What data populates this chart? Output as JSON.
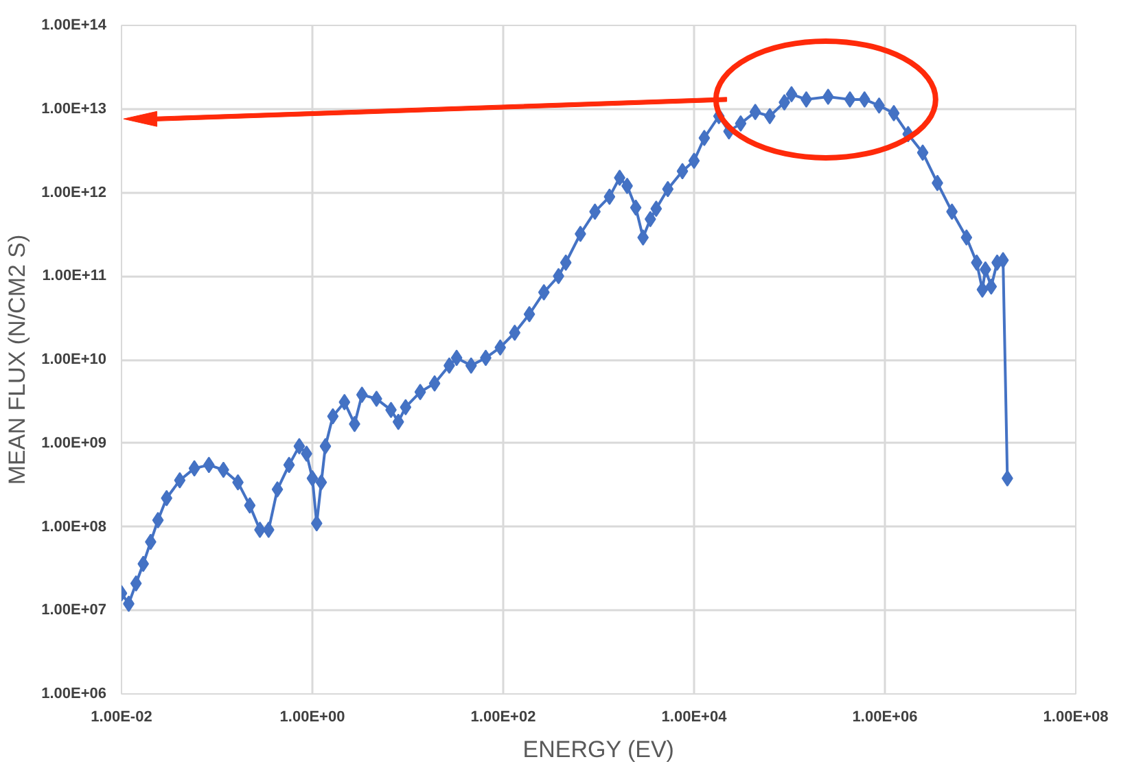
{
  "chart_data": {
    "type": "line",
    "xlabel": "ENERGY (EV)",
    "ylabel": "MEAN FLUX (N/CM2 S)",
    "log": "xy",
    "grid": true,
    "marker": "diamond",
    "line_style": "solid",
    "xlim": [
      0.01,
      100000000
    ],
    "ylim": [
      1000000,
      100000000000000
    ],
    "xticks": [
      {
        "value": 0.01,
        "label": "1.00E-02"
      },
      {
        "value": 1,
        "label": "1.00E+00"
      },
      {
        "value": 100,
        "label": "1.00E+02"
      },
      {
        "value": 10000,
        "label": "1.00E+04"
      },
      {
        "value": 1000000,
        "label": "1.00E+06"
      },
      {
        "value": 100000000,
        "label": "1.00E+08"
      }
    ],
    "yticks": [
      {
        "value": 1000000,
        "label": "1.00E+06"
      },
      {
        "value": 10000000,
        "label": "1.00E+07"
      },
      {
        "value": 100000000,
        "label": "1.00E+08"
      },
      {
        "value": 1000000000,
        "label": "1.00E+09"
      },
      {
        "value": 10000000000,
        "label": "1.00E+10"
      },
      {
        "value": 100000000000,
        "label": "1.00E+11"
      },
      {
        "value": 1000000000000,
        "label": "1.00E+12"
      },
      {
        "value": 10000000000000,
        "label": "1.00E+13"
      },
      {
        "value": 100000000000000,
        "label": "1.00E+14"
      }
    ],
    "series": [
      {
        "color": "#4472c4",
        "x": [
          0.01,
          0.0119,
          0.0142,
          0.0169,
          0.0202,
          0.0241,
          0.0297,
          0.0408,
          0.058,
          0.0824,
          0.117,
          0.166,
          0.221,
          0.282,
          0.348,
          0.43,
          0.57,
          0.729,
          0.869,
          1.0,
          1.11,
          1.24,
          1.37,
          1.64,
          2.17,
          2.77,
          3.31,
          4.7,
          6.67,
          7.96,
          9.49,
          13.5,
          19.1,
          27.2,
          32.5,
          46.1,
          65.6,
          93.1,
          132,
          188,
          267,
          380,
          453,
          644,
          915,
          1300,
          1660,
          1990,
          2450,
          2920,
          3480,
          4010,
          5310,
          7550,
          10000,
          12800,
          18200,
          23200,
          30800,
          43800,
          62200,
          88400,
          105000,
          150000,
          254000,
          430000,
          611000,
          869000,
          1240000,
          1750000,
          2490000,
          3550000,
          5040000,
          7160000,
          9160000,
          10500000,
          11300000,
          13000000,
          15000000,
          17300000,
          19200000
        ],
        "values": [
          16000000,
          12000000,
          21000000,
          36000000,
          66000000,
          120000000,
          220000000,
          360000000,
          500000000,
          550000000,
          480000000,
          340000000,
          180000000,
          92000000,
          92000000,
          280000000,
          550000000,
          920000000,
          750000000,
          380000000,
          110000000,
          340000000,
          920000000,
          2100000000,
          3100000000,
          1700000000,
          3800000000,
          3400000000,
          2500000000,
          1800000000,
          2700000000,
          4100000000,
          5200000000,
          8500000000,
          10500000000,
          8500000000,
          10500000000,
          14000000000,
          21000000000,
          35000000000,
          64000000000,
          100000000000,
          145000000000,
          320000000000,
          590000000000,
          890000000000,
          1500000000000,
          1200000000000,
          660000000000,
          290000000000,
          480000000000,
          640000000000,
          1100000000000,
          1800000000000,
          2400000000000,
          4500000000000,
          8200000000000,
          5400000000000,
          6700000000000,
          9200000000000,
          8200000000000,
          12000000000000,
          15000000000000,
          13000000000000,
          14000000000000,
          13000000000000,
          13000000000000,
          11000000000000,
          8900000000000,
          5000000000000,
          3000000000000,
          1300000000000,
          590000000000,
          290000000000,
          145000000000,
          69000000000,
          120000000000,
          75000000000,
          145000000000,
          155000000000,
          380000000
        ]
      }
    ]
  }
}
